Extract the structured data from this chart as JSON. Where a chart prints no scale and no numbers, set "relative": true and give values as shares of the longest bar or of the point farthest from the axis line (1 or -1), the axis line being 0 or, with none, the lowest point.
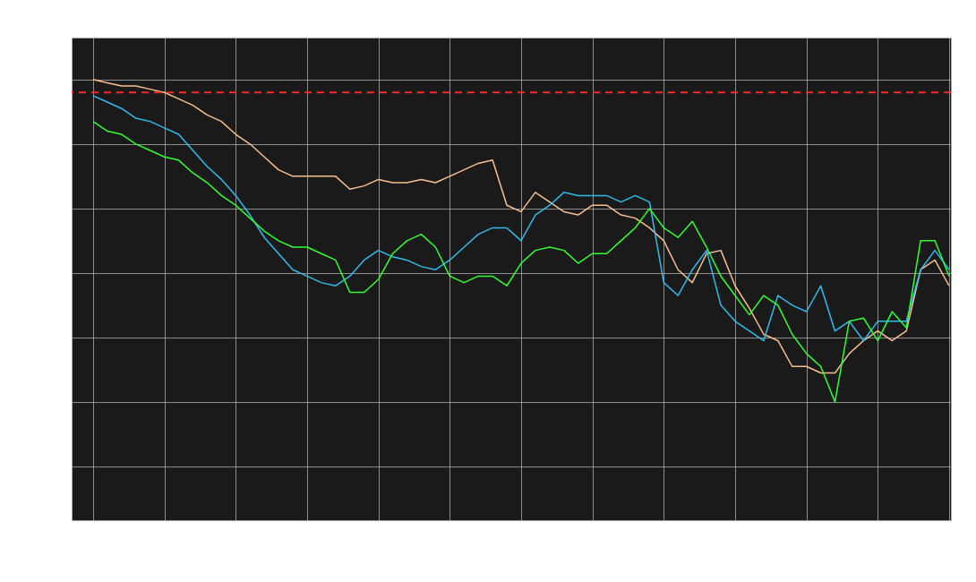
{
  "chart_data": {
    "type": "line",
    "relative": true,
    "grid": true,
    "categories": [
      null,
      null,
      null,
      null,
      null,
      null,
      null,
      null,
      null,
      null,
      null,
      null,
      null,
      null,
      null,
      null,
      null,
      null,
      null,
      null,
      null,
      null,
      null,
      null,
      null,
      null,
      null,
      null,
      null,
      null,
      null,
      null,
      null,
      null,
      null,
      null,
      null,
      null,
      null,
      null,
      null,
      null,
      null,
      null,
      null,
      null,
      null,
      null,
      null,
      null,
      null,
      null,
      null,
      null,
      null,
      null,
      null,
      null,
      null,
      null,
      null
    ],
    "series": [
      {
        "color": "#f8c090",
        "values": [
          1.0,
          0.99,
          0.98,
          0.98,
          0.97,
          0.96,
          0.94,
          0.92,
          0.89,
          0.87,
          0.83,
          0.8,
          0.76,
          0.72,
          0.7,
          0.7,
          0.7,
          0.7,
          0.66,
          0.67,
          0.69,
          0.68,
          0.68,
          0.69,
          0.68,
          0.7,
          0.72,
          0.74,
          0.75,
          0.61,
          0.59,
          0.65,
          0.62,
          0.59,
          0.58,
          0.61,
          0.61,
          0.58,
          0.57,
          0.54,
          0.5,
          0.41,
          0.37,
          0.46,
          0.47,
          0.36,
          0.29,
          0.21,
          0.19,
          0.11,
          0.11,
          0.09,
          0.09,
          0.15,
          0.19,
          0.22,
          0.19,
          0.22,
          0.41,
          0.44,
          0.36
        ]
      },
      {
        "color": "#33bbee",
        "values": [
          0.95,
          0.93,
          0.91,
          0.88,
          0.87,
          0.85,
          0.83,
          0.78,
          0.73,
          0.69,
          0.64,
          0.58,
          0.51,
          0.46,
          0.41,
          0.39,
          0.37,
          0.36,
          0.39,
          0.44,
          0.47,
          0.45,
          0.44,
          0.42,
          0.41,
          0.44,
          0.48,
          0.52,
          0.54,
          0.54,
          0.5,
          0.58,
          0.61,
          0.65,
          0.64,
          0.64,
          0.64,
          0.62,
          0.64,
          0.62,
          0.37,
          0.33,
          0.41,
          0.47,
          0.3,
          0.25,
          0.22,
          0.19,
          0.33,
          0.3,
          0.28,
          0.36,
          0.22,
          0.25,
          0.19,
          0.25,
          0.25,
          0.25,
          0.41,
          0.47,
          0.41
        ]
      },
      {
        "color": "#33ff33",
        "values": [
          0.87,
          0.84,
          0.83,
          0.8,
          0.78,
          0.76,
          0.75,
          0.71,
          0.68,
          0.64,
          0.61,
          0.57,
          0.53,
          0.5,
          0.48,
          0.48,
          0.46,
          0.44,
          0.34,
          0.34,
          0.38,
          0.46,
          0.5,
          0.52,
          0.48,
          0.39,
          0.37,
          0.39,
          0.39,
          0.36,
          0.43,
          0.47,
          0.48,
          0.47,
          0.43,
          0.46,
          0.46,
          0.5,
          0.54,
          0.6,
          0.54,
          0.51,
          0.56,
          0.48,
          0.39,
          0.33,
          0.27,
          0.33,
          0.3,
          0.21,
          0.15,
          0.11,
          0.0,
          0.25,
          0.26,
          0.19,
          0.28,
          0.23,
          0.5,
          0.5,
          0.39
        ]
      }
    ],
    "ref_lines": [
      {
        "axis": "y",
        "value": 0.96,
        "color": "#ff2a2a",
        "line_style": "dashed"
      }
    ]
  }
}
